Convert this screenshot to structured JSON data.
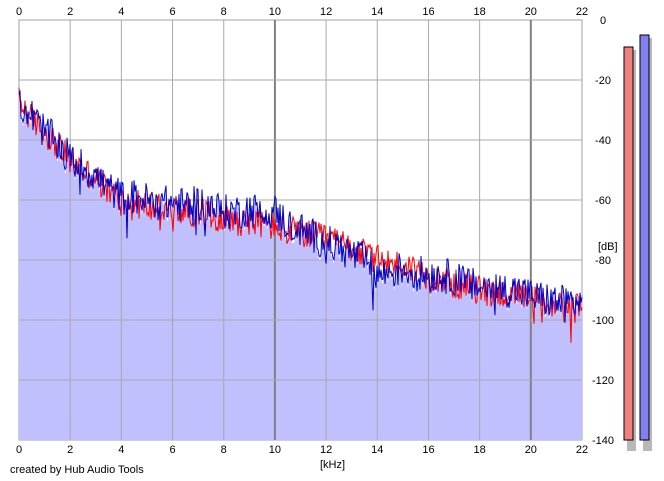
{
  "chart_data": {
    "type": "area",
    "title": "",
    "xlabel": "[kHz]",
    "ylabel": "[dB]",
    "xlim": [
      0,
      22
    ],
    "ylim": [
      -140,
      0
    ],
    "x_ticks": [
      "0",
      "2",
      "4",
      "6",
      "8",
      "10",
      "12",
      "14",
      "16",
      "18",
      "20",
      "22"
    ],
    "y_ticks": [
      "0",
      "-20",
      "-40",
      "-60",
      "-80",
      "-100",
      "-120",
      "-140"
    ],
    "grid": true,
    "series": [
      {
        "color": "#ff0000",
        "x": [
          0,
          0.5,
          1,
          1.5,
          2,
          2.5,
          3,
          3.5,
          4,
          4.5,
          5,
          5.5,
          6,
          6.5,
          7,
          7.5,
          8,
          8.5,
          9,
          9.5,
          10,
          10.5,
          11,
          11.5,
          12,
          12.5,
          13,
          13.5,
          14,
          14.5,
          15,
          15.5,
          16,
          16.5,
          17,
          17.5,
          18,
          18.5,
          19,
          19.5,
          20,
          20.5,
          21,
          21.5,
          22
        ],
        "values": [
          -27,
          -33,
          -37,
          -42,
          -47,
          -50,
          -53,
          -57,
          -60,
          -61,
          -62,
          -63,
          -63,
          -64,
          -64,
          -65,
          -66,
          -67,
          -67,
          -68,
          -69,
          -70,
          -71,
          -72,
          -73,
          -74,
          -76,
          -78,
          -80,
          -81,
          -82,
          -83,
          -85,
          -86,
          -88,
          -89,
          -90,
          -91,
          -91,
          -92,
          -93,
          -94,
          -95,
          -96,
          -96
        ],
        "spread": 5
      },
      {
        "color": "#0000c8",
        "x": [
          0,
          0.5,
          1,
          1.5,
          2,
          2.5,
          3,
          3.5,
          4,
          4.5,
          5,
          5.5,
          6,
          6.5,
          7,
          7.5,
          8,
          8.5,
          9,
          9.5,
          10,
          10.5,
          11,
          11.5,
          12,
          12.5,
          13,
          13.5,
          14,
          14.5,
          15,
          15.5,
          16,
          16.5,
          17,
          17.5,
          18,
          18.5,
          19,
          19.5,
          20,
          20.5,
          21,
          21.5,
          22
        ],
        "values": [
          -27,
          -32,
          -37,
          -41,
          -46,
          -49,
          -52,
          -56,
          -59,
          -59,
          -60,
          -61,
          -61,
          -62,
          -61,
          -62,
          -64,
          -64,
          -63,
          -64,
          -64,
          -68,
          -70,
          -72,
          -74,
          -76,
          -78,
          -80,
          -85,
          -84,
          -83,
          -84,
          -85,
          -85,
          -86,
          -88,
          -89,
          -89,
          -90,
          -90,
          -92,
          -93,
          -94,
          -94,
          -94
        ],
        "spread": 6
      }
    ],
    "fill": {
      "color": "#c0c0ff",
      "base": -140
    },
    "meters": [
      {
        "color": "#f08080",
        "level_db": -9
      },
      {
        "color": "#8080f0",
        "level_db": -5
      }
    ]
  },
  "credit": "created by Hub Audio Tools"
}
